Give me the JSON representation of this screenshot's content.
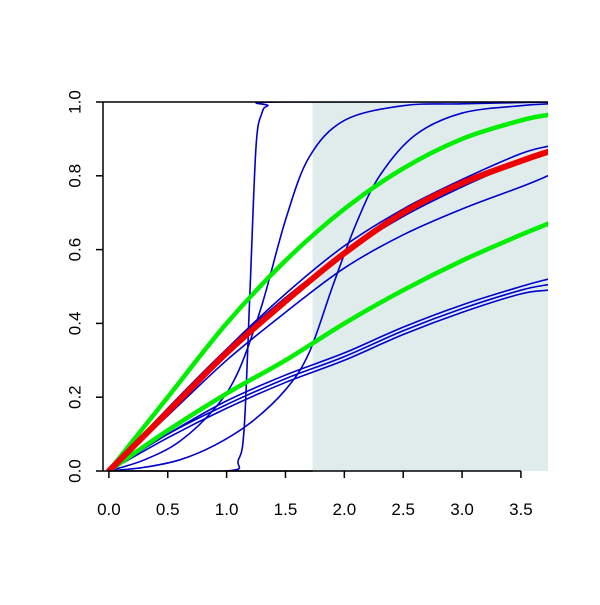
{
  "chart_data": {
    "type": "line",
    "title": "",
    "xlabel": "",
    "ylabel": "",
    "xlim": [
      -0.05,
      3.73
    ],
    "ylim": [
      0,
      1
    ],
    "x_ticks": [
      "0.0",
      "0.5",
      "1.0",
      "1.5",
      "2.0",
      "2.5",
      "3.0",
      "3.5"
    ],
    "y_ticks": [
      "0.0",
      "0.2",
      "0.4",
      "0.6",
      "0.8",
      "1.0"
    ],
    "grid": false,
    "legend": "none",
    "shaded_region": {
      "x_start": 1.73,
      "x_end": 3.73,
      "color": "#e0ecec"
    },
    "series": [
      {
        "color": "#0000cc",
        "x": [
          0,
          1.0,
          1.1,
          1.15,
          1.2,
          1.25,
          1.3,
          1.35,
          1.45,
          3.73
        ],
        "y": [
          0,
          0.0,
          0.03,
          0.12,
          0.5,
          0.88,
          0.97,
          0.99,
          1.0,
          1.0
        ]
      },
      {
        "color": "#0000cc",
        "x": [
          0,
          0.3,
          0.6,
          0.9,
          1.1,
          1.3,
          1.5,
          1.7,
          2.0,
          2.5,
          3.0,
          3.73
        ],
        "y": [
          0,
          0.03,
          0.08,
          0.17,
          0.27,
          0.45,
          0.68,
          0.85,
          0.95,
          0.99,
          0.995,
          1.0
        ]
      },
      {
        "color": "#0000cc",
        "x": [
          0,
          0.3,
          0.6,
          0.9,
          1.2,
          1.5,
          1.7,
          1.9,
          2.1,
          2.3,
          2.6,
          3.0,
          3.5,
          3.73
        ],
        "y": [
          0,
          0.01,
          0.03,
          0.07,
          0.13,
          0.22,
          0.32,
          0.5,
          0.67,
          0.8,
          0.91,
          0.97,
          0.99,
          0.995
        ]
      },
      {
        "color": "#0000cc",
        "x": [
          0,
          0.5,
          1.0,
          1.5,
          2.0,
          2.5,
          3.0,
          3.5,
          3.73
        ],
        "y": [
          0,
          0.16,
          0.33,
          0.48,
          0.61,
          0.71,
          0.79,
          0.86,
          0.88
        ]
      },
      {
        "color": "#0000cc",
        "x": [
          0,
          0.5,
          1.0,
          1.5,
          2.0,
          2.5,
          3.0,
          3.5,
          3.73
        ],
        "y": [
          0,
          0.17,
          0.33,
          0.47,
          0.59,
          0.69,
          0.77,
          0.84,
          0.87
        ]
      },
      {
        "color": "#0000cc",
        "x": [
          0,
          0.5,
          1.0,
          1.5,
          2.0,
          2.5,
          3.0,
          3.5,
          3.73
        ],
        "y": [
          0,
          0.15,
          0.3,
          0.43,
          0.55,
          0.64,
          0.71,
          0.77,
          0.8
        ]
      },
      {
        "color": "#0000cc",
        "x": [
          0,
          0.5,
          1.0,
          1.5,
          2.0,
          2.5,
          3.0,
          3.5,
          3.73
        ],
        "y": [
          0,
          0.1,
          0.19,
          0.26,
          0.32,
          0.39,
          0.45,
          0.5,
          0.52
        ]
      },
      {
        "color": "#0000cc",
        "x": [
          0,
          0.5,
          1.0,
          1.5,
          2.0,
          2.5,
          3.0,
          3.5,
          3.73
        ],
        "y": [
          0,
          0.1,
          0.18,
          0.25,
          0.31,
          0.38,
          0.44,
          0.49,
          0.505
        ]
      },
      {
        "color": "#0000cc",
        "x": [
          0,
          0.5,
          1.0,
          1.5,
          2.0,
          2.5,
          3.0,
          3.5,
          3.73
        ],
        "y": [
          0,
          0.09,
          0.17,
          0.24,
          0.3,
          0.37,
          0.43,
          0.48,
          0.49
        ]
      },
      {
        "color": "#00ee00",
        "x": [
          0,
          0.5,
          1.0,
          1.5,
          2.0,
          2.5,
          3.0,
          3.5,
          3.73
        ],
        "y": [
          0,
          0.2,
          0.4,
          0.57,
          0.71,
          0.82,
          0.9,
          0.95,
          0.965
        ]
      },
      {
        "color": "#00ee00",
        "x": [
          0,
          0.5,
          1.0,
          1.5,
          2.0,
          2.5,
          3.0,
          3.5,
          3.73
        ],
        "y": [
          0,
          0.11,
          0.21,
          0.3,
          0.4,
          0.49,
          0.57,
          0.64,
          0.67
        ]
      },
      {
        "color": "#ee0000",
        "x": [
          0,
          0.5,
          1.0,
          1.5,
          2.0,
          2.5,
          3.0,
          3.5,
          3.73
        ],
        "y": [
          0,
          0.16,
          0.32,
          0.46,
          0.59,
          0.7,
          0.78,
          0.84,
          0.865
        ]
      }
    ]
  }
}
